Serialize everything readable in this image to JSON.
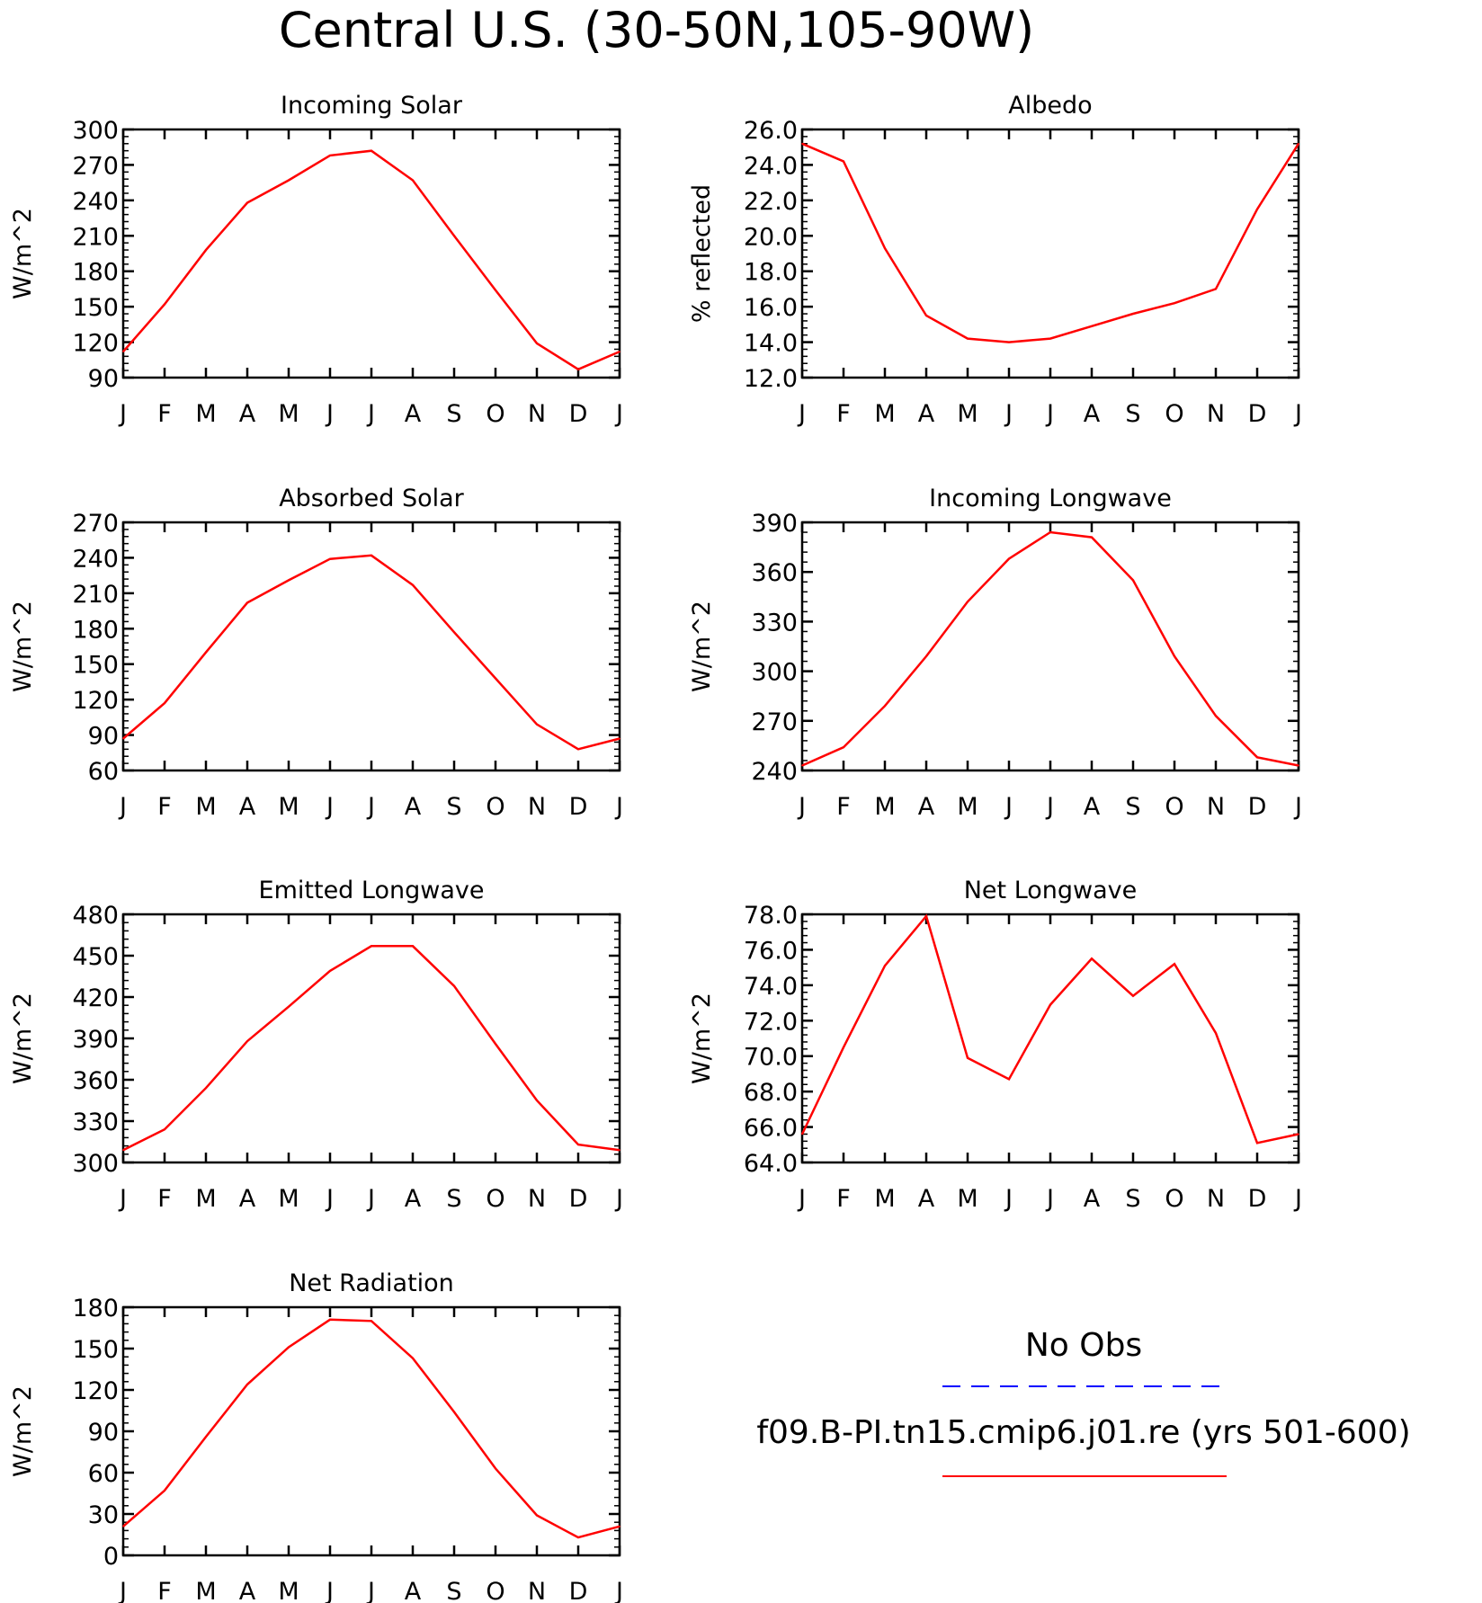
{
  "page_title": "Central U.S. (30-50N,105-90W)",
  "months": [
    "J",
    "F",
    "M",
    "A",
    "M",
    "J",
    "J",
    "A",
    "S",
    "O",
    "N",
    "D",
    "J"
  ],
  "legend": {
    "obs_label": "No Obs",
    "obs_color": "#0000ff",
    "model_label": "f09.B-PI.tn15.cmip6.j01.re (yrs 501-600)",
    "model_color": "#ff0000"
  },
  "chart_data": [
    {
      "type": "line",
      "title": "Incoming Solar",
      "ylabel": "W/m^2",
      "ylim": [
        90,
        300
      ],
      "yticks": [
        "90",
        "120",
        "150",
        "180",
        "210",
        "240",
        "270",
        "300"
      ],
      "series": [
        {
          "name": "f09.B-PI.tn15.cmip6.j01.re (yrs 501-600)",
          "values": [
            112,
            152,
            198,
            238,
            257,
            278,
            282,
            257,
            210,
            164,
            119,
            97,
            112
          ]
        }
      ]
    },
    {
      "type": "line",
      "title": "Albedo",
      "ylabel": "% reflected",
      "ylim": [
        12.0,
        26.0
      ],
      "yticks": [
        "12.0",
        "14.0",
        "16.0",
        "18.0",
        "20.0",
        "22.0",
        "24.0",
        "26.0"
      ],
      "series": [
        {
          "name": "f09.B-PI.tn15.cmip6.j01.re (yrs 501-600)",
          "values": [
            25.2,
            24.2,
            19.3,
            15.5,
            14.2,
            14.0,
            14.2,
            14.9,
            15.6,
            16.2,
            17.0,
            21.5,
            25.2
          ]
        }
      ]
    },
    {
      "type": "line",
      "title": "Absorbed Solar",
      "ylabel": "W/m^2",
      "ylim": [
        60,
        270
      ],
      "yticks": [
        "60",
        "90",
        "120",
        "150",
        "180",
        "210",
        "240",
        "270"
      ],
      "series": [
        {
          "name": "f09.B-PI.tn15.cmip6.j01.re (yrs 501-600)",
          "values": [
            87,
            117,
            160,
            202,
            221,
            239,
            242,
            217,
            177,
            138,
            99,
            78,
            87
          ]
        }
      ]
    },
    {
      "type": "line",
      "title": "Incoming Longwave",
      "ylabel": "W/m^2",
      "ylim": [
        240,
        390
      ],
      "yticks": [
        "240",
        "270",
        "300",
        "330",
        "360",
        "390"
      ],
      "series": [
        {
          "name": "f09.B-PI.tn15.cmip6.j01.re (yrs 501-600)",
          "values": [
            243,
            254,
            279,
            309,
            342,
            368,
            384,
            381,
            355,
            309,
            273,
            248,
            243
          ]
        }
      ]
    },
    {
      "type": "line",
      "title": "Emitted Longwave",
      "ylabel": "W/m^2",
      "ylim": [
        300,
        480
      ],
      "yticks": [
        "300",
        "330",
        "360",
        "390",
        "420",
        "450",
        "480"
      ],
      "series": [
        {
          "name": "f09.B-PI.tn15.cmip6.j01.re (yrs 501-600)",
          "values": [
            309,
            324,
            354,
            388,
            413,
            439,
            457,
            457,
            428,
            386,
            345,
            313,
            309
          ]
        }
      ]
    },
    {
      "type": "line",
      "title": "Net Longwave",
      "ylabel": "W/m^2",
      "ylim": [
        64.0,
        78.0
      ],
      "yticks": [
        "64.0",
        "66.0",
        "68.0",
        "70.0",
        "72.0",
        "74.0",
        "76.0",
        "78.0"
      ],
      "series": [
        {
          "name": "f09.B-PI.tn15.cmip6.j01.re (yrs 501-600)",
          "values": [
            65.6,
            70.5,
            75.1,
            77.9,
            69.9,
            68.7,
            72.9,
            75.5,
            73.4,
            75.2,
            71.3,
            65.1,
            65.6
          ]
        }
      ]
    },
    {
      "type": "line",
      "title": "Net Radiation",
      "ylabel": "W/m^2",
      "ylim": [
        0,
        180
      ],
      "yticks": [
        "0",
        "30",
        "60",
        "90",
        "120",
        "150",
        "180"
      ],
      "series": [
        {
          "name": "f09.B-PI.tn15.cmip6.j01.re (yrs 501-600)",
          "values": [
            21,
            47,
            86,
            124,
            151,
            171,
            170,
            143,
            104,
            63,
            29,
            13,
            21
          ]
        }
      ]
    }
  ]
}
